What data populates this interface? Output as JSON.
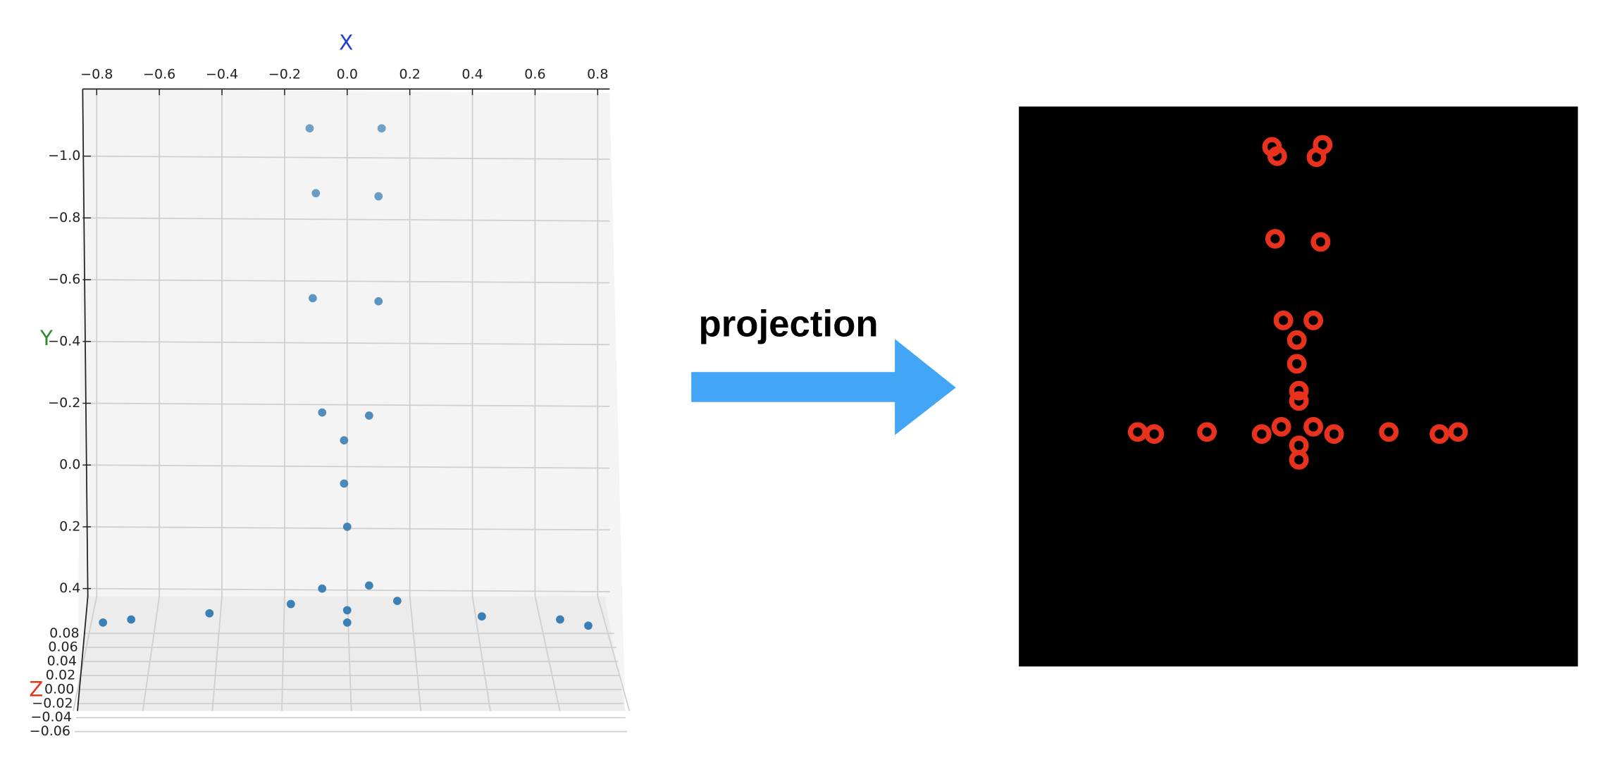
{
  "chart_data": {
    "type": "scatter3d",
    "xlabel": "X",
    "ylabel": "Y",
    "zlabel": "Z",
    "color": "#3a7fb5",
    "xlim": [
      -0.84,
      0.84
    ],
    "ylim": [
      -1.2,
      0.5
    ],
    "zlim": [
      -0.06,
      0.08
    ],
    "xticks": [
      {
        "value": -0.8,
        "label": "−0.8"
      },
      {
        "value": -0.6,
        "label": "−0.6"
      },
      {
        "value": -0.4,
        "label": "−0.4"
      },
      {
        "value": -0.2,
        "label": "−0.2"
      },
      {
        "value": 0,
        "label": "0.0"
      },
      0.2,
      0.4,
      0.6,
      0.8
    ],
    "yticks": [
      {
        "value": -1.0,
        "label": "−1.0"
      },
      {
        "value": -0.8,
        "label": "−0.8"
      },
      {
        "value": -0.6,
        "label": "−0.6"
      },
      {
        "value": -0.4,
        "label": "−0.4"
      },
      {
        "value": -0.2,
        "label": "−0.2"
      },
      {
        "value": 0,
        "label": "0.0"
      },
      0.2,
      0.4
    ],
    "zticks": [
      0.08,
      0.06,
      0.04,
      0.02,
      {
        "value": 0,
        "label": "0.00"
      },
      {
        "value": -0.02,
        "label": "−0.02"
      },
      {
        "value": -0.04,
        "label": "−0.04"
      },
      {
        "value": -0.06,
        "label": "−0.06"
      }
    ],
    "grid": true,
    "x": [
      -0.12,
      0.11,
      -0.1,
      0.1,
      -0.11,
      0.1,
      -0.08,
      0.07,
      -0.01,
      -0.01,
      0,
      -0.08,
      0.07,
      -0.18,
      0.16,
      0,
      0,
      -0.44,
      -0.69,
      -0.78,
      0.43,
      0.68,
      0.77
    ],
    "y": [
      -1.09,
      -1.09,
      -0.88,
      -0.87,
      -0.54,
      -0.53,
      -0.17,
      -0.16,
      -0.08,
      0.06,
      0.2,
      0.4,
      0.39,
      0.45,
      0.44,
      0.47,
      0.51,
      0.48,
      0.5,
      0.51,
      0.49,
      0.5,
      0.52
    ]
  },
  "arrow_label": "projection"
}
